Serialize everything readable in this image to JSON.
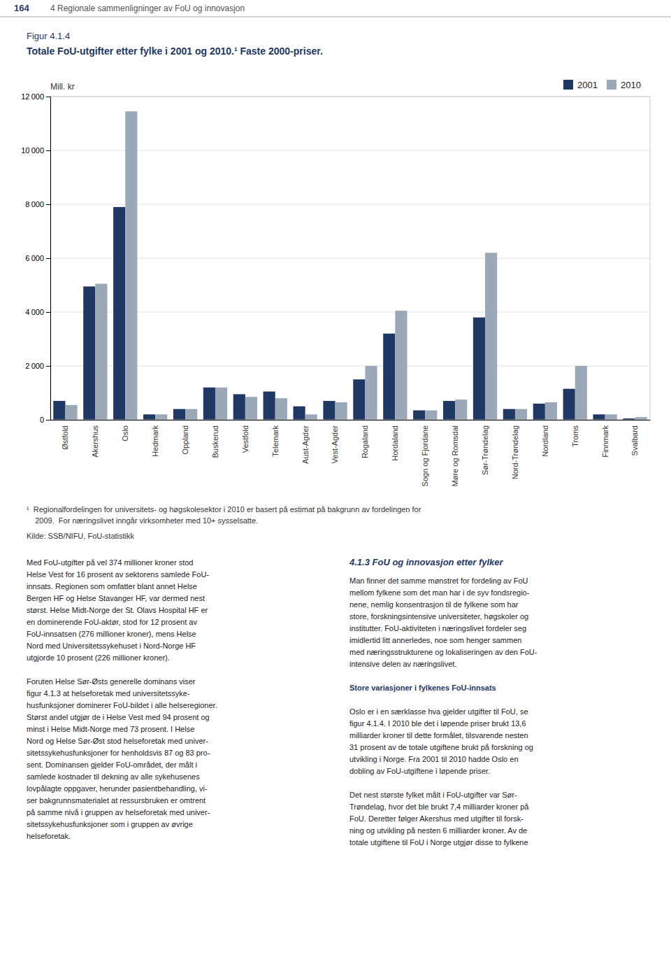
{
  "chart_data": {
    "type": "bar",
    "title": "Figur 4.1.4",
    "subtitle": "Totale FoU-utgifter etter fylke i 2001 og 2010.¹ Faste 2000-priser.",
    "ylabel": "Mill. kr",
    "categories": [
      "Østfold",
      "Akershus",
      "Oslo",
      "Hedmark",
      "Oppland",
      "Buskerud",
      "Vestfold",
      "Telemark",
      "Aust-Agder",
      "Vest-Agder",
      "Rogaland",
      "Hordaland",
      "Sogn og Fjordane",
      "Møre og Romsdal",
      "Sør-Trøndelag",
      "Nord-Trøndelag",
      "Nordland",
      "Troms",
      "Finnmark",
      "Svalbard"
    ],
    "series": [
      {
        "name": "2001",
        "color": "#1F3864",
        "values": [
          700,
          4950,
          7900,
          200,
          400,
          1200,
          950,
          1050,
          500,
          700,
          1500,
          3200,
          350,
          700,
          3800,
          400,
          600,
          1150,
          200,
          50
        ]
      },
      {
        "name": "2010",
        "color": "#9BA8B8",
        "values": [
          550,
          5050,
          11450,
          200,
          400,
          1200,
          850,
          800,
          200,
          650,
          2000,
          4050,
          350,
          750,
          6200,
          400,
          650,
          2000,
          200,
          100
        ]
      }
    ],
    "ylim": [
      0,
      12000
    ],
    "yticks": [
      0,
      {
        "value": 2000,
        "label": "2 000"
      },
      {
        "value": 4000,
        "label": "4 000"
      },
      {
        "value": 6000,
        "label": "6 000"
      },
      {
        "value": 8000,
        "label": "8 000"
      },
      {
        "value": 10000,
        "label": "10 000"
      },
      {
        "value": 12000,
        "label": "12 000"
      }
    ],
    "grid": true,
    "legend": "upper right",
    "annotations": [
      "¹  Regionalfordelingen for universitets- og høgskolesektor i 2010 er basert på estimat på bakgrunn av fordelingen for",
      "    2009.  For næringslivet inngår virksomheter med 10+ sysselsatte.",
      "Kilde: SSB/NIFU, FoU-statistikk"
    ]
  },
  "header": [
    "164",
    "4 Regionale sammenligninger av FoU og innovasjon"
  ],
  "body_left": [
    [
      "Med FoU-utgifter på vel 374 millioner kroner stod",
      "Helse Vest for 16 prosent av sektorens samlede FoU-",
      "innsats. Regionen som omfatter blant annet Helse",
      "Bergen HF og Helse Stavanger HF, var dermed nest",
      "størst. Helse Midt-Norge der St. Olavs Hospital HF er",
      "en dominerende FoU-aktør, stod for 12 prosent av",
      "FoU-innsatsen (276 millioner kroner), mens Helse",
      "Nord med Universitetssykehuset i Nord-Norge HF",
      "utgjorde 10 prosent (226 millioner kroner)."
    ],
    [
      "Foruten Helse Sør-Østs generelle dominans viser",
      "figur 4.1.3 at helseforetak med universitetssyke-",
      "husfunksjoner dominerer FoU-bildet i alle helseregioner.",
      "Størst andel utgjør de i Helse Vest med 94 prosent og",
      "minst i Helse Midt-Norge med 73 prosent. I Helse",
      "Nord og Helse Sør-Øst stod helseforetak med univer-",
      "sitetssykehusfunksjoner for henholdsvis 87 og 83 pro-",
      "sent. Dominansen gjelder FoU-området, der målt i",
      "samlede kostnader til dekning av alle sykehusenes",
      "lovpålagte oppgaver, herunder pasientbehandling, vi-",
      "ser bakgrunnsmaterialet at ressursbruken er omtrent",
      "på samme nivå i gruppen av helseforetak med univer-",
      "sitetssykehusfunksjoner som i gruppen av øvrige",
      "helseforetak."
    ]
  ],
  "body_right_title": "4.1.3 FoU og innovasjon etter fylker",
  "body_right": [
    {
      "lines": [
        "Man finner det samme mønstret for fordeling av FoU",
        "mellom fylkene som det man har i de syv fondsregio-",
        "nene, nemlig konsentrasjon til de fylkene som har",
        "store, forskningsintensive universiteter, høgskoler og",
        "institutter. FoU-aktiviteten i næringslivet fordeler seg",
        "imidlertid litt annerledes, noe som henger sammen",
        "med næringsstrukturene og lokaliseringen av den FoU-",
        "intensive delen av næringslivet."
      ]
    },
    {
      "heading": "Store variasjoner i fylkenes FoU-innsats"
    },
    {
      "lines": [
        "Oslo er i en særklasse hva gjelder utgifter til FoU, se",
        "figur 4.1.4. I 2010 ble det i løpende priser brukt 13,6",
        "milliarder kroner til dette formålet, tilsvarende nesten",
        "31 prosent av de totale utgiftene brukt på forskning og",
        "utvikling i Norge. Fra 2001 til 2010 hadde Oslo en",
        "dobling av FoU-utgiftene i løpende priser."
      ]
    },
    {
      "lines": [
        "Det nest største fylket målt i FoU-utgifter var Sør-",
        "Trøndelag, hvor det ble brukt 7,4 milliarder kroner på",
        "FoU. Deretter følger Akershus med utgifter til forsk-",
        "ning og utvikling på nesten 6 milliarder kroner. Av de",
        "totale utgiftene til FoU i Norge utgjør disse to fylkene"
      ]
    }
  ]
}
